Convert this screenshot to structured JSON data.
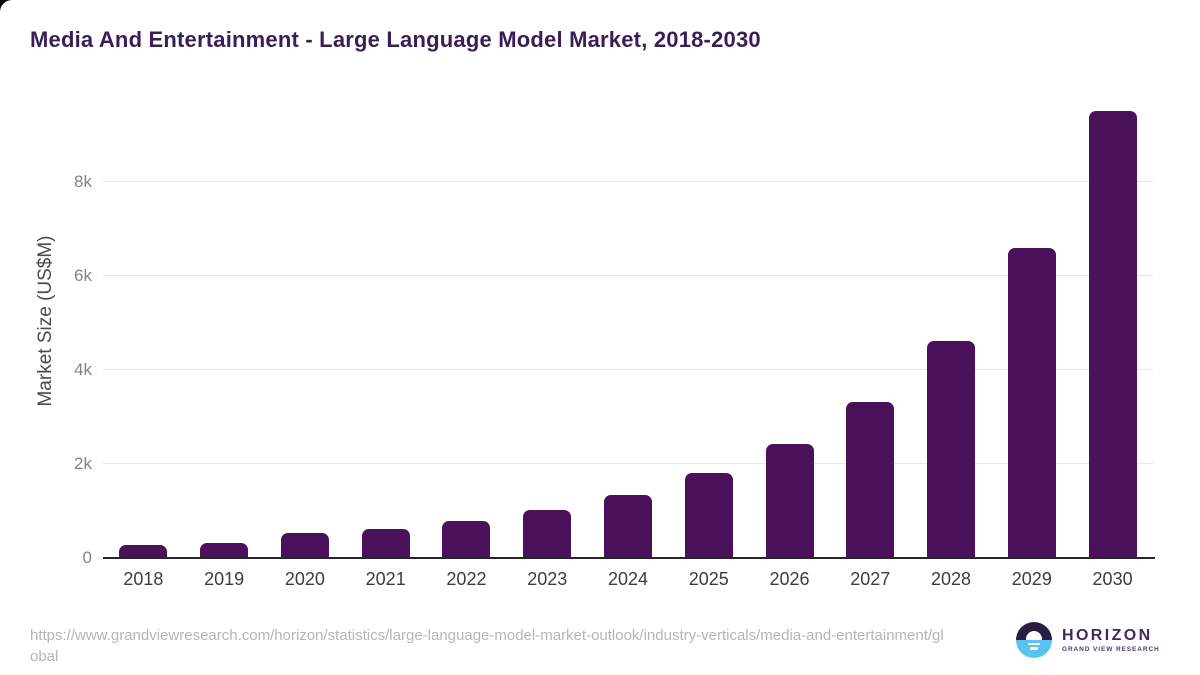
{
  "title": "Media And Entertainment - Large Language Model Market, 2018-2030",
  "chart_data": {
    "type": "bar",
    "title": "Media And Entertainment - Large Language Model Market, 2018-2030",
    "categories": [
      "2018",
      "2019",
      "2020",
      "2021",
      "2022",
      "2023",
      "2024",
      "2025",
      "2026",
      "2027",
      "2028",
      "2029",
      "2030"
    ],
    "values": [
      280,
      310,
      540,
      620,
      780,
      1020,
      1340,
      1800,
      2420,
      3320,
      4620,
      6590,
      9520
    ],
    "xlabel": "",
    "ylabel": "Market Size (US$M)",
    "ylim": [
      0,
      9750
    ],
    "yticks": [
      {
        "v": 0,
        "label": "0"
      },
      {
        "v": 2000,
        "label": "2k"
      },
      {
        "v": 4000,
        "label": "4k"
      },
      {
        "v": 6000,
        "label": "6k"
      },
      {
        "v": 8000,
        "label": "8k"
      }
    ],
    "grid": true,
    "legend_position": "none",
    "bar_color": "#4a105a"
  },
  "footer": {
    "source_url": "https://www.grandviewresearch.com/horizon/statistics/large-language-model-market-outlook/industry-verticals/media-and-entertainment/global"
  },
  "logo": {
    "wordmark": "HORIZON",
    "subtitle": "GRAND VIEW RESEARCH",
    "icon": "horizon-sunset-icon",
    "icon_colors": {
      "top": "#2b1c45",
      "bottom": "#5ac2ee",
      "glyph": "#ffffff"
    }
  },
  "colors": {
    "background": "#ffffff",
    "title_text": "#3b1e54",
    "axis_line": "#262626",
    "gridline": "#e7e7e7",
    "x_tick_text": "#3d3d3d",
    "y_tick_text": "#848484",
    "y_axis_title_text": "#4a4a4a",
    "source_url_text": "#b5b5b5"
  }
}
